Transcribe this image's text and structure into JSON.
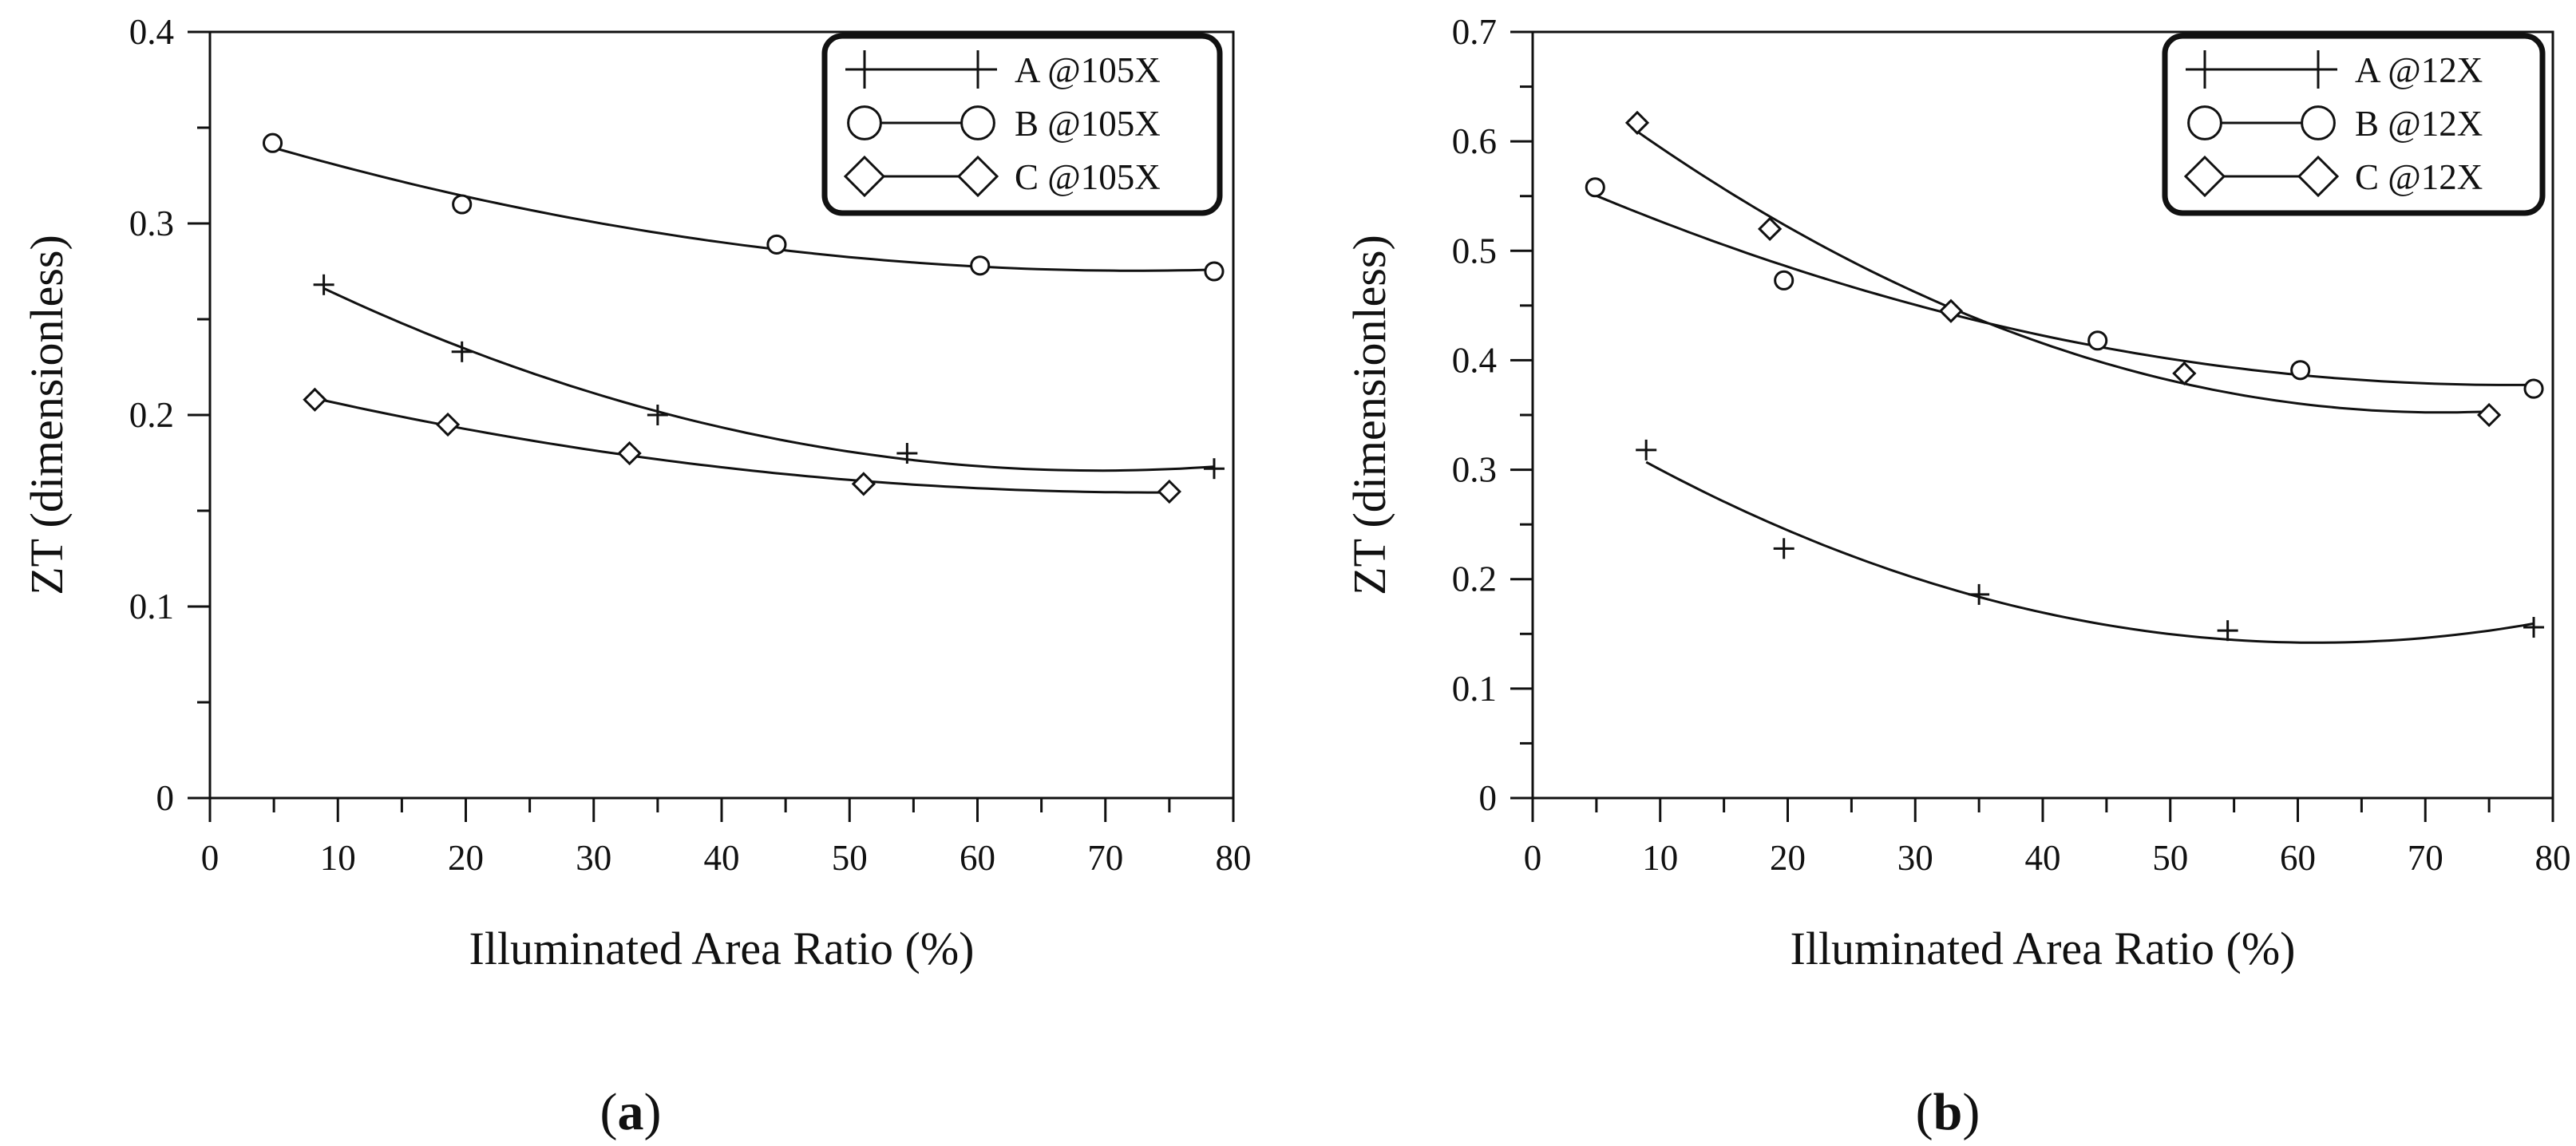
{
  "chart_data": [
    {
      "type": "scatter",
      "panel_label": "a",
      "xlabel": "Illuminated Area Ratio (%)",
      "ylabel": "ZT (dimensionless)",
      "xlim": [
        0,
        80
      ],
      "ylim": [
        0,
        0.4
      ],
      "x_ticks": [
        0,
        10,
        20,
        30,
        40,
        50,
        60,
        70,
        80
      ],
      "x_tick_labels": [
        "0",
        "10",
        "20",
        "30",
        "40",
        "50",
        "60",
        "70",
        "80"
      ],
      "y_ticks": [
        0,
        0.1,
        0.2,
        0.3,
        0.4
      ],
      "y_tick_labels": [
        "0",
        "0.1",
        "0.2",
        "0.3",
        "0.4"
      ],
      "legend_position": "top-right",
      "fit": "quadratic trend line",
      "series": [
        {
          "name": "A @105X",
          "marker": "plus",
          "x": [
            8.9,
            19.7,
            35.0,
            54.5,
            78.5
          ],
          "y": [
            0.268,
            0.233,
            0.2,
            0.18,
            0.172
          ]
        },
        {
          "name": "B @105X",
          "marker": "circle",
          "x": [
            4.9,
            19.7,
            44.3,
            60.2,
            78.5
          ],
          "y": [
            0.342,
            0.31,
            0.289,
            0.278,
            0.275
          ]
        },
        {
          "name": "C @105X",
          "marker": "diamond",
          "x": [
            8.2,
            18.6,
            32.8,
            51.1,
            75.0
          ],
          "y": [
            0.208,
            0.195,
            0.18,
            0.164,
            0.16
          ]
        }
      ]
    },
    {
      "type": "scatter",
      "panel_label": "b",
      "xlabel": "Illuminated Area Ratio (%)",
      "ylabel": "ZT (dimensionless)",
      "xlim": [
        0,
        80
      ],
      "ylim": [
        0,
        0.7
      ],
      "x_ticks": [
        0,
        10,
        20,
        30,
        40,
        50,
        60,
        70,
        80
      ],
      "x_tick_labels": [
        "0",
        "10",
        "20",
        "30",
        "40",
        "50",
        "60",
        "70",
        "80"
      ],
      "y_ticks": [
        0,
        0.1,
        0.2,
        0.3,
        0.4,
        0.5,
        0.6,
        0.7
      ],
      "y_tick_labels": [
        "0",
        "0.1",
        "0.2",
        "0.3",
        "0.4",
        "0.5",
        "0.6",
        "0.7"
      ],
      "legend_position": "top-right",
      "fit": "quadratic trend line",
      "series": [
        {
          "name": "A @12X",
          "marker": "plus",
          "x": [
            8.9,
            19.7,
            35.0,
            54.5,
            78.5
          ],
          "y": [
            0.318,
            0.228,
            0.186,
            0.153,
            0.156
          ]
        },
        {
          "name": "B @12X",
          "marker": "circle",
          "x": [
            4.9,
            19.7,
            44.3,
            60.2,
            78.5
          ],
          "y": [
            0.558,
            0.473,
            0.418,
            0.391,
            0.374
          ]
        },
        {
          "name": "C @12X",
          "marker": "diamond",
          "x": [
            8.2,
            18.6,
            32.8,
            51.1,
            75.0
          ],
          "y": [
            0.617,
            0.52,
            0.445,
            0.388,
            0.35
          ]
        }
      ]
    }
  ]
}
